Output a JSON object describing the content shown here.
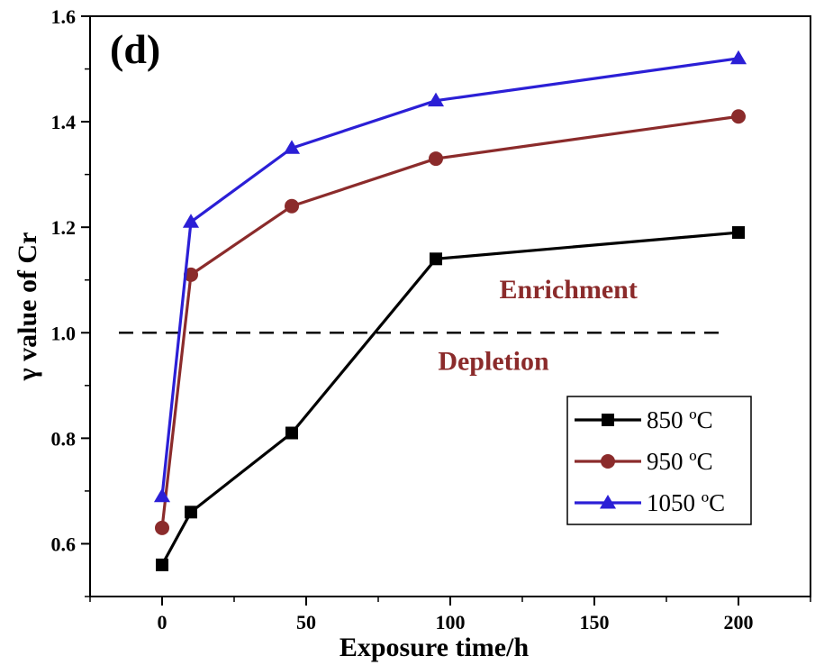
{
  "chart_data": {
    "type": "line",
    "panel_label": "(d)",
    "xlabel": "Exposure time/h",
    "ylabel": "γ value of Cr",
    "xlim": [
      -25,
      225
    ],
    "ylim": [
      0.5,
      1.6
    ],
    "x_ticks": [
      0,
      50,
      100,
      150,
      200
    ],
    "x_minor_ticks": [
      -25,
      25,
      75,
      125,
      175,
      225
    ],
    "y_ticks": [
      0.6,
      0.8,
      1.0,
      1.2,
      1.4,
      1.6
    ],
    "y_tick_labels": [
      "0.6",
      "0.8",
      "1.0",
      "1.2",
      "1.4",
      "1.6"
    ],
    "y_minor_ticks": [
      0.5,
      0.7,
      0.9,
      1.1,
      1.3,
      1.5
    ],
    "grid": false,
    "legend_position": "bottom-right",
    "reference_line": {
      "y": 1.0,
      "x_start": -15,
      "x_end": 195,
      "style": "dashed",
      "color": "#000000"
    },
    "annotations": [
      {
        "text": "Enrichment",
        "x": 141,
        "y": 1.065,
        "color": "#8b2b2b"
      },
      {
        "text": "Depletion",
        "x": 115,
        "y": 0.93,
        "color": "#8b2b2b"
      }
    ],
    "x": [
      0,
      10,
      45,
      95,
      200
    ],
    "series": [
      {
        "name": "850 ºC",
        "marker": "square",
        "color": "#000000",
        "values": [
          0.56,
          0.66,
          0.81,
          1.14,
          1.19
        ]
      },
      {
        "name": "950 ºC",
        "marker": "circle",
        "color": "#8b2b2b",
        "values": [
          0.63,
          1.11,
          1.24,
          1.33,
          1.41
        ]
      },
      {
        "name": "1050 ºC",
        "marker": "triangle",
        "color": "#2b1fd6",
        "values": [
          0.69,
          1.21,
          1.35,
          1.44,
          1.52
        ]
      }
    ]
  }
}
